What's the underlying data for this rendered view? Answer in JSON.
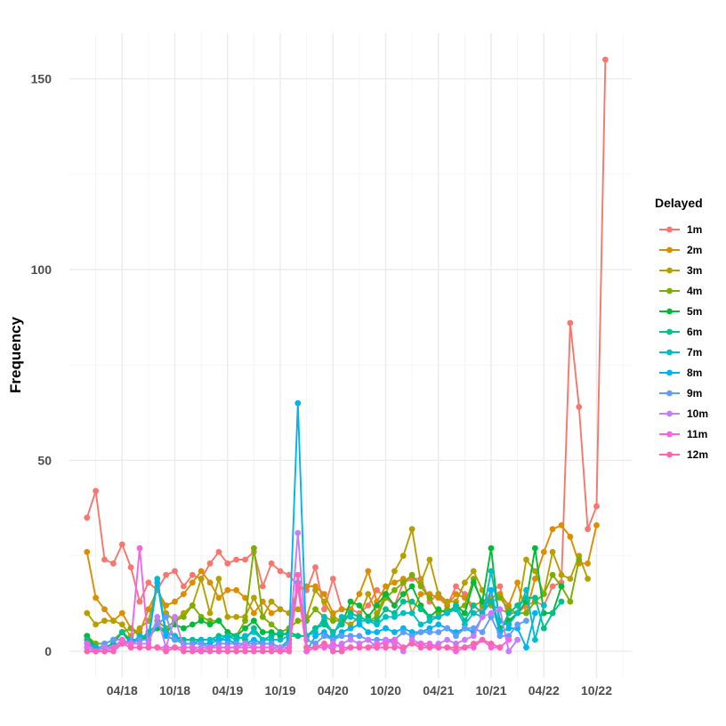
{
  "chart_data": {
    "type": "line",
    "title": "",
    "xlabel": "",
    "ylabel": "Frequency",
    "ylim": [
      -7,
      162
    ],
    "yticks": [
      0,
      50,
      100,
      150
    ],
    "x": [
      "2017-12",
      "2018-01",
      "2018-02",
      "2018-03",
      "2018-04",
      "2018-05",
      "2018-06",
      "2018-07",
      "2018-08",
      "2018-09",
      "2018-10",
      "2018-11",
      "2018-12",
      "2019-01",
      "2019-02",
      "2019-03",
      "2019-04",
      "2019-05",
      "2019-06",
      "2019-07",
      "2019-08",
      "2019-09",
      "2019-10",
      "2019-11",
      "2019-12",
      "2020-01",
      "2020-02",
      "2020-03",
      "2020-04",
      "2020-05",
      "2020-06",
      "2020-07",
      "2020-08",
      "2020-09",
      "2020-10",
      "2020-11",
      "2020-12",
      "2021-01",
      "2021-02",
      "2021-03",
      "2021-04",
      "2021-05",
      "2021-06",
      "2021-07",
      "2021-08",
      "2021-09",
      "2021-10",
      "2021-11",
      "2021-12",
      "2022-01",
      "2022-02",
      "2022-03",
      "2022-04",
      "2022-05",
      "2022-06",
      "2022-07",
      "2022-08",
      "2022-09",
      "2022-10",
      "2022-11"
    ],
    "xlim": [
      "2017-10",
      "2023-02"
    ],
    "xticks": [
      {
        "date": "2018-04",
        "label": "04/18"
      },
      {
        "date": "2018-10",
        "label": "10/18"
      },
      {
        "date": "2019-04",
        "label": "04/19"
      },
      {
        "date": "2019-10",
        "label": "10/19"
      },
      {
        "date": "2020-04",
        "label": "04/20"
      },
      {
        "date": "2020-10",
        "label": "10/20"
      },
      {
        "date": "2021-04",
        "label": "04/21"
      },
      {
        "date": "2021-10",
        "label": "10/21"
      },
      {
        "date": "2022-04",
        "label": "04/22"
      },
      {
        "date": "2022-10",
        "label": "10/22"
      }
    ],
    "grid": true,
    "legend": {
      "title": "Delayed",
      "position": "right"
    },
    "series": [
      {
        "name": "1m",
        "color": "#F8766D",
        "values": [
          35,
          42,
          24,
          23,
          28,
          22,
          13,
          18,
          16,
          20,
          21,
          17,
          20,
          19,
          23,
          26,
          23,
          24,
          24,
          26,
          17,
          23,
          21,
          20,
          17,
          16,
          22,
          11,
          19,
          11,
          11,
          10,
          12,
          16,
          14,
          12,
          18,
          19,
          19,
          13,
          15,
          12,
          17,
          15,
          10,
          11,
          16,
          17,
          8,
          10,
          12,
          13,
          12,
          17,
          18,
          86,
          64,
          32,
          38,
          155
        ]
      },
      {
        "name": "2m",
        "color": "#DE8C00",
        "values": [
          26,
          14,
          11,
          8,
          10,
          6,
          5,
          11,
          16,
          12,
          13,
          15,
          18,
          21,
          18,
          14,
          16,
          16,
          14,
          10,
          13,
          10,
          11,
          10,
          16,
          17,
          17,
          15,
          10,
          11,
          11,
          15,
          21,
          13,
          17,
          18,
          19,
          10,
          15,
          15,
          14,
          12,
          15,
          14,
          12,
          13,
          14,
          15,
          12,
          18,
          10,
          19,
          26,
          32,
          33,
          30,
          23,
          23,
          33,
          null
        ]
      },
      {
        "name": "3m",
        "color": "#B79F00",
        "values": [
          10,
          7,
          8,
          8,
          7,
          4,
          6,
          8,
          17,
          10,
          8,
          10,
          12,
          19,
          10,
          19,
          9,
          9,
          9,
          14,
          9,
          13,
          11,
          10,
          11,
          9,
          16,
          13,
          9,
          8,
          7,
          9,
          15,
          10,
          15,
          21,
          25,
          32,
          18,
          24,
          15,
          13,
          13,
          18,
          21,
          16,
          12,
          11,
          10,
          10,
          24,
          21,
          15,
          26,
          20,
          19,
          25,
          19,
          null,
          null
        ]
      },
      {
        "name": "4m",
        "color": "#7CAE00",
        "values": [
          4,
          2,
          2,
          3,
          5,
          6,
          4,
          3,
          8,
          6,
          8,
          9,
          12,
          9,
          8,
          8,
          5,
          4,
          8,
          27,
          9,
          7,
          5,
          6,
          8,
          8,
          11,
          9,
          8,
          8,
          10,
          9,
          8,
          9,
          14,
          16,
          18,
          20,
          17,
          14,
          10,
          11,
          11,
          12,
          19,
          12,
          13,
          14,
          11,
          10,
          10,
          13,
          15,
          20,
          17,
          13,
          24,
          null,
          null,
          null
        ]
      },
      {
        "name": "5m",
        "color": "#00BA38",
        "values": [
          4,
          1,
          1,
          2,
          5,
          2,
          3,
          4,
          6,
          5,
          7,
          6,
          7,
          8,
          7,
          8,
          5,
          4,
          6,
          8,
          5,
          5,
          4,
          5,
          4,
          4,
          6,
          8,
          5,
          7,
          13,
          12,
          9,
          12,
          15,
          12,
          15,
          17,
          12,
          9,
          11,
          10,
          12,
          10,
          18,
          13,
          27,
          6,
          8,
          10,
          13,
          27,
          10,
          10,
          17,
          null,
          null,
          null,
          null,
          null
        ]
      },
      {
        "name": "6m",
        "color": "#00C08B",
        "values": [
          3,
          1,
          1,
          2,
          5,
          3,
          3,
          5,
          7,
          5,
          4,
          3,
          3,
          3,
          3,
          4,
          4,
          4,
          3,
          6,
          3,
          4,
          5,
          4,
          4,
          4,
          6,
          7,
          5,
          7,
          10,
          9,
          8,
          8,
          11,
          10,
          13,
          13,
          11,
          9,
          9,
          10,
          12,
          8,
          12,
          10,
          13,
          5,
          10,
          12,
          14,
          14,
          6,
          10,
          13,
          null,
          null,
          null,
          null,
          null
        ]
      },
      {
        "name": "7m",
        "color": "#00BFC4",
        "values": [
          2,
          1,
          1,
          1,
          3,
          2,
          4,
          4,
          19,
          5,
          4,
          2,
          2,
          3,
          3,
          3,
          4,
          3,
          4,
          5,
          3,
          3,
          3,
          4,
          18,
          4,
          5,
          9,
          4,
          9,
          9,
          8,
          8,
          7,
          9,
          9,
          10,
          10,
          7,
          8,
          9,
          10,
          11,
          7,
          10,
          9,
          21,
          8,
          7,
          10,
          16,
          3,
          12,
          null,
          null,
          null,
          null,
          null,
          null,
          null
        ]
      },
      {
        "name": "8m",
        "color": "#00B4F0",
        "values": [
          2,
          1,
          1,
          1,
          2,
          3,
          3,
          3,
          18,
          4,
          3,
          2,
          2,
          2,
          2,
          3,
          3,
          2,
          2,
          3,
          2,
          2,
          1,
          3,
          65,
          0,
          4,
          5,
          3,
          5,
          6,
          7,
          5,
          5,
          6,
          5,
          6,
          5,
          5,
          6,
          7,
          6,
          5,
          6,
          5,
          9,
          16,
          5,
          6,
          6,
          1,
          10,
          null,
          null,
          null,
          null,
          null,
          null,
          null,
          null
        ]
      },
      {
        "name": "9m",
        "color": "#619CFF",
        "values": [
          1,
          0,
          2,
          3,
          3,
          2,
          3,
          3,
          7,
          9,
          3,
          2,
          2,
          2,
          1,
          2,
          2,
          2,
          2,
          2,
          2,
          2,
          1,
          2,
          18,
          3,
          2,
          4,
          3,
          4,
          4,
          4,
          3,
          3,
          3,
          3,
          5,
          4,
          5,
          5,
          5,
          6,
          4,
          6,
          6,
          5,
          9,
          4,
          4,
          7,
          8,
          null,
          null,
          null,
          null,
          null,
          null,
          null,
          null,
          null
        ]
      },
      {
        "name": "10m",
        "color": "#C77CFF",
        "values": [
          1,
          0,
          1,
          1,
          2,
          2,
          2,
          2,
          9,
          1,
          9,
          1,
          1,
          1,
          1,
          1,
          1,
          1,
          2,
          1,
          1,
          1,
          1,
          1,
          31,
          1,
          1,
          2,
          1,
          2,
          3,
          2,
          3,
          1,
          3,
          2,
          0,
          3,
          2,
          1,
          2,
          3,
          2,
          3,
          4,
          9,
          10,
          11,
          0,
          3,
          null,
          null,
          null,
          null,
          null,
          null,
          null,
          null,
          null,
          null
        ]
      },
      {
        "name": "11m",
        "color": "#F564E3",
        "values": [
          2,
          0,
          0,
          1,
          3,
          2,
          27,
          1,
          1,
          1,
          1,
          1,
          1,
          0,
          1,
          1,
          1,
          1,
          1,
          1,
          1,
          1,
          0,
          1,
          17,
          0,
          1,
          1,
          2,
          1,
          1,
          1,
          1,
          2,
          2,
          3,
          1,
          2,
          2,
          2,
          1,
          1,
          0,
          1,
          1,
          3,
          1,
          1,
          3,
          null,
          null,
          null,
          null,
          null,
          null,
          null,
          null,
          null,
          null,
          null
        ]
      },
      {
        "name": "12m",
        "color": "#FF64B0",
        "values": [
          0,
          0,
          0,
          0,
          2,
          1,
          1,
          1,
          1,
          0,
          1,
          0,
          0,
          0,
          0,
          0,
          0,
          0,
          0,
          0,
          0,
          0,
          0,
          0,
          20,
          1,
          1,
          2,
          0,
          0,
          1,
          1,
          1,
          1,
          1,
          1,
          1,
          2,
          1,
          1,
          1,
          1,
          1,
          1,
          2,
          3,
          2,
          1,
          null,
          null,
          null,
          null,
          null,
          null,
          null,
          null,
          null,
          null,
          null,
          null
        ]
      }
    ]
  }
}
